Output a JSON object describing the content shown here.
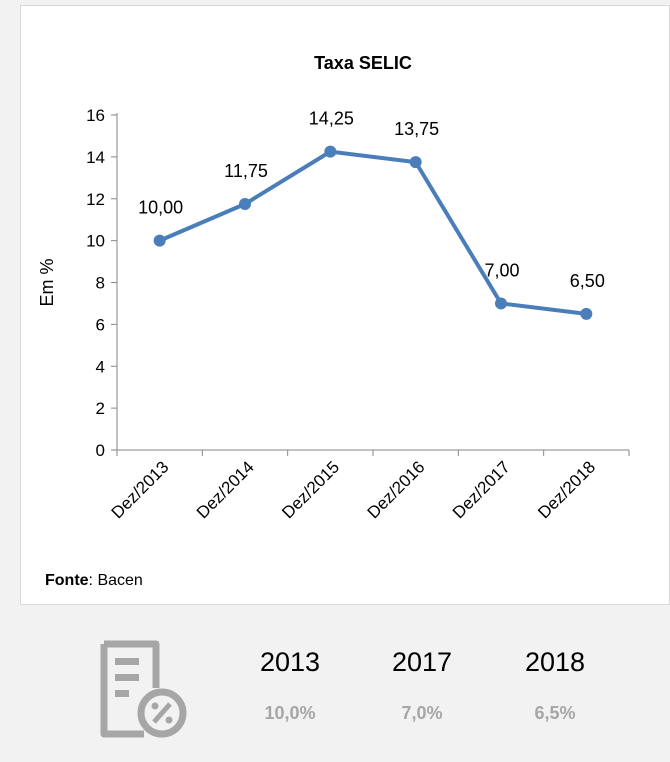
{
  "chart_data": {
    "type": "line",
    "title": "Taxa SELIC",
    "ylabel": "Em %",
    "xlabel": "",
    "categories": [
      "Dez/2013",
      "Dez/2014",
      "Dez/2015",
      "Dez/2016",
      "Dez/2017",
      "Dez/2018"
    ],
    "series": [
      {
        "values": [
          10.0,
          11.75,
          14.25,
          13.75,
          7.0,
          6.5
        ]
      }
    ],
    "data_labels": [
      "10,00",
      "11,75",
      "14,25",
      "13,75",
      "7,00",
      "6,50"
    ],
    "y_ticks": [
      "0",
      "2",
      "4",
      "6",
      "8",
      "10",
      "12",
      "14",
      "16"
    ],
    "ylim": [
      0,
      16
    ],
    "grid": false,
    "legend": "none",
    "line_color": "#4a7ebb"
  },
  "source": {
    "label": "Fonte",
    "separator": ": ",
    "value": "Bacen"
  },
  "summary": {
    "icon": "document-percent-icon",
    "icon_color": "#a6a6a6",
    "items": [
      {
        "year": "2013",
        "rate": "10,0%"
      },
      {
        "year": "2017",
        "rate": "7,0%"
      },
      {
        "year": "2018",
        "rate": "6,5%"
      }
    ]
  }
}
